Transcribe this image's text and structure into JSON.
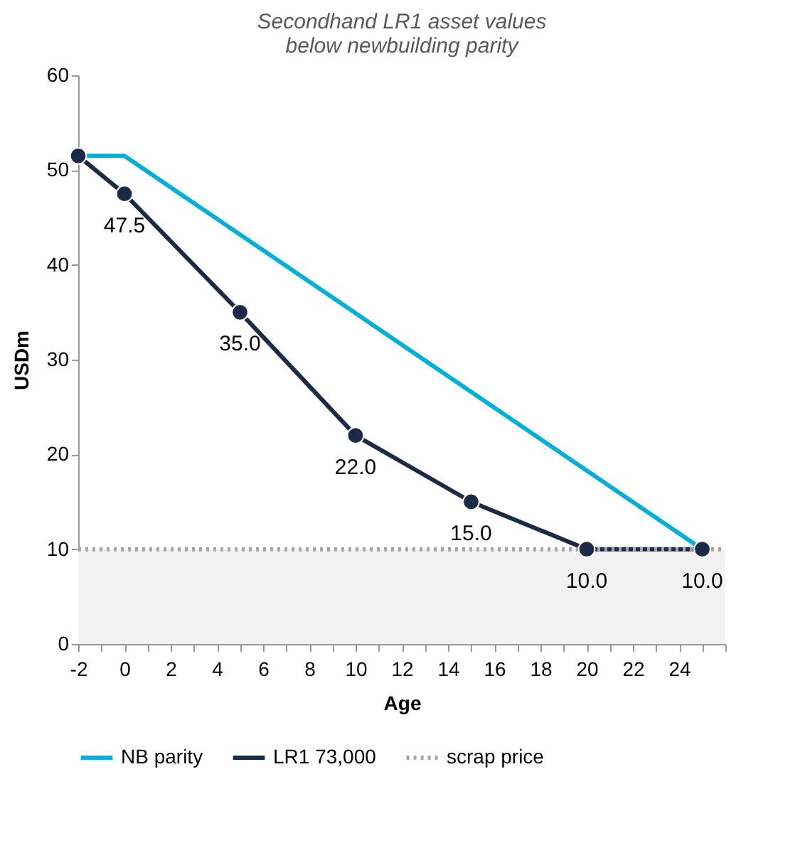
{
  "chart_data": {
    "type": "line",
    "title": "Secondhand LR1 asset values below newbuilding parity",
    "xlabel": "Age",
    "ylabel": "USDm",
    "xlim": [
      -2,
      26
    ],
    "xticks": [
      -2,
      {
        "value": -1,
        "label": null
      },
      0,
      {
        "value": 1,
        "label": null
      },
      2,
      {
        "value": 3,
        "label": null
      },
      4,
      {
        "value": 5,
        "label": null
      },
      6,
      {
        "value": 7,
        "label": null
      },
      8,
      {
        "value": 9,
        "label": null
      },
      10,
      {
        "value": 11,
        "label": null
      },
      12,
      {
        "value": 13,
        "label": null
      },
      14,
      {
        "value": 15,
        "label": null
      },
      16,
      {
        "value": 17,
        "label": null
      },
      18,
      {
        "value": 19,
        "label": null
      },
      20,
      {
        "value": 21,
        "label": null
      },
      22,
      {
        "value": 23,
        "label": null
      },
      24,
      {
        "value": 25,
        "label": null
      },
      {
        "value": 26,
        "label": null
      }
    ],
    "ylim": [
      0,
      60
    ],
    "yticks": [
      0,
      10,
      20,
      30,
      40,
      50,
      60
    ],
    "grid": false,
    "legend": "bottom",
    "bands": [
      {
        "axis": "y",
        "from": 0,
        "to": 10,
        "color": "#f2f2f2"
      }
    ],
    "series": [
      {
        "name": "NB parity",
        "color": "#00b0d8",
        "x": [
          -2,
          0,
          25
        ],
        "values": [
          51.5,
          51.5,
          10
        ],
        "line_style": "solid",
        "marker": "none"
      },
      {
        "name": "LR1 73,000",
        "color": "#1b2a47",
        "x": [
          -2,
          0,
          5,
          10,
          15,
          20,
          25
        ],
        "values": [
          51.5,
          47.5,
          35,
          22,
          15,
          10,
          10
        ],
        "line_style": "solid",
        "marker": "circle",
        "value_labels": [
          null,
          "47.5",
          "35.0",
          "22.0",
          "15.0",
          "10.0",
          "10.0"
        ]
      },
      {
        "name": "scrap price",
        "color": "#a6a6a6",
        "x": [
          -2,
          26
        ],
        "values": [
          10,
          10
        ],
        "line_style": "dotted",
        "marker": "none"
      }
    ]
  }
}
